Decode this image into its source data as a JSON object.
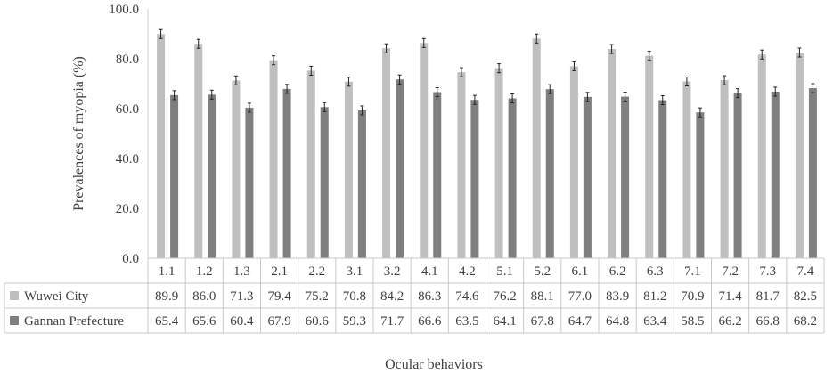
{
  "chart_data": {
    "type": "bar",
    "title": "",
    "xlabel": "Ocular behaviors",
    "ylabel": "Prevalences of myopia (%)",
    "ylim": [
      0,
      100
    ],
    "yticks": [
      "0.0",
      "20.0",
      "40.0",
      "60.0",
      "80.0",
      "100.0"
    ],
    "categories": [
      "1.1",
      "1.2",
      "1.3",
      "2.1",
      "2.2",
      "3.1",
      "3.2",
      "4.1",
      "4.2",
      "5.1",
      "5.2",
      "6.1",
      "6.2",
      "6.3",
      "7.1",
      "7.2",
      "7.3",
      "7.4"
    ],
    "series": [
      {
        "name": "Wuwei City",
        "color": "#bfbfbf",
        "values": [
          89.9,
          86.0,
          71.3,
          79.4,
          75.2,
          70.8,
          84.2,
          86.3,
          74.6,
          76.2,
          88.1,
          77.0,
          83.9,
          81.2,
          70.9,
          71.4,
          81.7,
          82.5
        ],
        "value_labels": [
          "89.9",
          "86.0",
          "71.3",
          "79.4",
          "75.2",
          "70.8",
          "84.2",
          "86.3",
          "74.6",
          "76.2",
          "88.1",
          "77.0",
          "83.9",
          "81.2",
          "70.9",
          "71.4",
          "81.7",
          "82.5"
        ]
      },
      {
        "name": "Gannan Prefecture",
        "color": "#7f7f7f",
        "values": [
          65.4,
          65.6,
          60.4,
          67.9,
          60.6,
          59.3,
          71.7,
          66.6,
          63.5,
          64.1,
          67.8,
          64.7,
          64.8,
          63.4,
          58.5,
          66.2,
          66.8,
          68.2
        ],
        "value_labels": [
          "65.4",
          "65.6",
          "60.4",
          "67.9",
          "60.6",
          "59.3",
          "71.7",
          "66.6",
          "63.5",
          "64.1",
          "67.8",
          "64.7",
          "64.8",
          "63.4",
          "58.5",
          "66.2",
          "66.8",
          "68.2"
        ]
      }
    ],
    "error_bars": true,
    "grid": false,
    "legend": "data-table-below-axis"
  }
}
